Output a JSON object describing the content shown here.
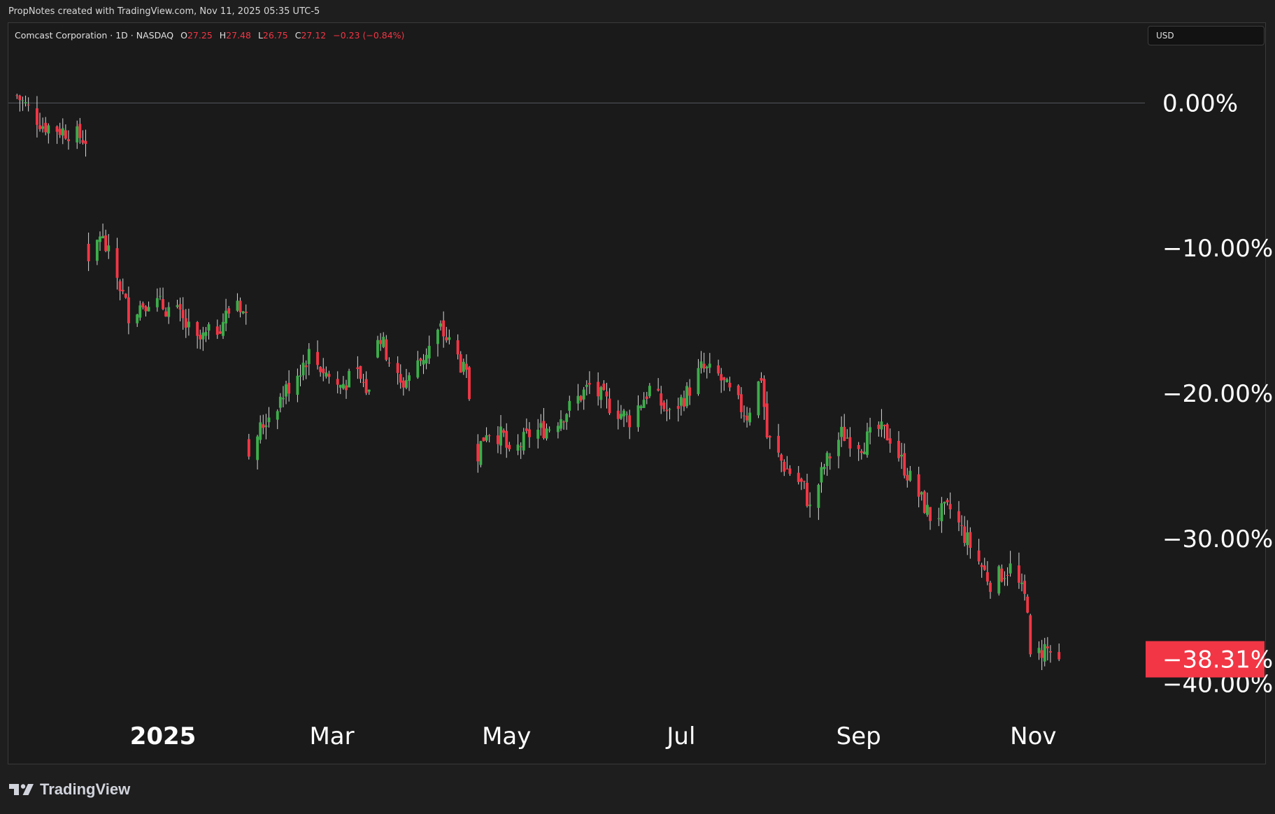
{
  "header": {
    "note": "PropNotes created with TradingView.com, Nov 11, 2025 05:35 UTC-5"
  },
  "legend": {
    "symbol": "Comcast Corporation · 1D · NASDAQ",
    "o_label": "O",
    "o_value": "27.25",
    "h_label": "H",
    "h_value": "27.48",
    "l_label": "L",
    "l_value": "26.75",
    "c_label": "C",
    "c_value": "27.12",
    "change": "−0.23 (−0.84%)"
  },
  "currency": "USD",
  "brand": {
    "name": "TradingView"
  },
  "colors": {
    "up": "#3cae4a",
    "down": "#f23645",
    "background": "#1a1a1a",
    "text": "#d1d4dc",
    "last_badge": "#f23645"
  },
  "chart_data": {
    "type": "candlestick",
    "scale": "percentage",
    "y_ticks": [
      "0.00%",
      "−10.00%",
      "−20.00%",
      "−30.00%",
      "−40.00%"
    ],
    "y_tick_values": [
      0,
      -10,
      -20,
      -30,
      -40
    ],
    "ylim": [
      -45.5,
      5.5
    ],
    "x_ticks": [
      "2025",
      "Mar",
      "May",
      "Jul",
      "Sep",
      "Nov"
    ],
    "x_tick_dates": [
      "2025-01-01",
      "2025-03-01",
      "2025-05-01",
      "2025-07-01",
      "2025-09-01",
      "2025-11-01"
    ],
    "xlim": [
      "2024-11-08",
      "2025-12-10"
    ],
    "baseline": 0,
    "last_value": -38.31,
    "last_label": "−38.31%",
    "anchors": [
      [
        "2024-11-11",
        0.5
      ],
      [
        "2024-11-20",
        -1.5
      ],
      [
        "2024-11-29",
        -2.0
      ],
      [
        "2024-12-05",
        -2.5
      ],
      [
        "2024-12-06",
        -11.5
      ],
      [
        "2024-12-10",
        -9.0
      ],
      [
        "2024-12-16",
        -12.0
      ],
      [
        "2024-12-20",
        -14.5
      ],
      [
        "2024-12-27",
        -13.5
      ],
      [
        "2025-01-06",
        -14.5
      ],
      [
        "2025-01-13",
        -16.5
      ],
      [
        "2025-01-20",
        -15.5
      ],
      [
        "2025-01-27",
        -13.5
      ],
      [
        "2025-01-30",
        -14.8
      ],
      [
        "2025-01-31",
        -23.8
      ],
      [
        "2025-02-07",
        -21.5
      ],
      [
        "2025-02-14",
        -19.5
      ],
      [
        "2025-02-21",
        -17.3
      ],
      [
        "2025-03-03",
        -19.5
      ],
      [
        "2025-03-10",
        -18.8
      ],
      [
        "2025-03-14",
        -20.0
      ],
      [
        "2025-03-17",
        -15.8
      ],
      [
        "2025-03-25",
        -19.5
      ],
      [
        "2025-03-31",
        -18.0
      ],
      [
        "2025-04-08",
        -15.6
      ],
      [
        "2025-04-14",
        -17.5
      ],
      [
        "2025-04-17",
        -19.0
      ],
      [
        "2025-04-21",
        -24.0
      ],
      [
        "2025-04-24",
        -22.5
      ],
      [
        "2025-04-30",
        -23.0
      ],
      [
        "2025-05-02",
        -24.5
      ],
      [
        "2025-05-09",
        -22.8
      ],
      [
        "2025-05-16",
        -22.3
      ],
      [
        "2025-05-23",
        -21.0
      ],
      [
        "2025-05-30",
        -19.5
      ],
      [
        "2025-06-06",
        -20.8
      ],
      [
        "2025-06-13",
        -21.8
      ],
      [
        "2025-06-20",
        -19.7
      ],
      [
        "2025-06-27",
        -21.5
      ],
      [
        "2025-07-03",
        -20.0
      ],
      [
        "2025-07-08",
        -18.3
      ],
      [
        "2025-07-14",
        -18.8
      ],
      [
        "2025-07-18",
        -20.0
      ],
      [
        "2025-07-24",
        -21.5
      ],
      [
        "2025-07-29",
        -18.8
      ],
      [
        "2025-07-31",
        -23.0
      ],
      [
        "2025-08-06",
        -25.0
      ],
      [
        "2025-08-13",
        -26.5
      ],
      [
        "2025-08-15",
        -28.0
      ],
      [
        "2025-08-20",
        -25.0
      ],
      [
        "2025-08-26",
        -22.8
      ],
      [
        "2025-09-02",
        -23.5
      ],
      [
        "2025-09-08",
        -22.5
      ],
      [
        "2025-09-12",
        -23.0
      ],
      [
        "2025-09-18",
        -25.5
      ],
      [
        "2025-09-26",
        -28.5
      ],
      [
        "2025-10-03",
        -28.0
      ],
      [
        "2025-10-10",
        -30.5
      ],
      [
        "2025-10-17",
        -33.0
      ],
      [
        "2025-10-24",
        -32.0
      ],
      [
        "2025-10-30",
        -34.5
      ],
      [
        "2025-10-31",
        -38.5
      ],
      [
        "2025-11-05",
        -37.5
      ],
      [
        "2025-11-10",
        -38.31
      ]
    ]
  }
}
